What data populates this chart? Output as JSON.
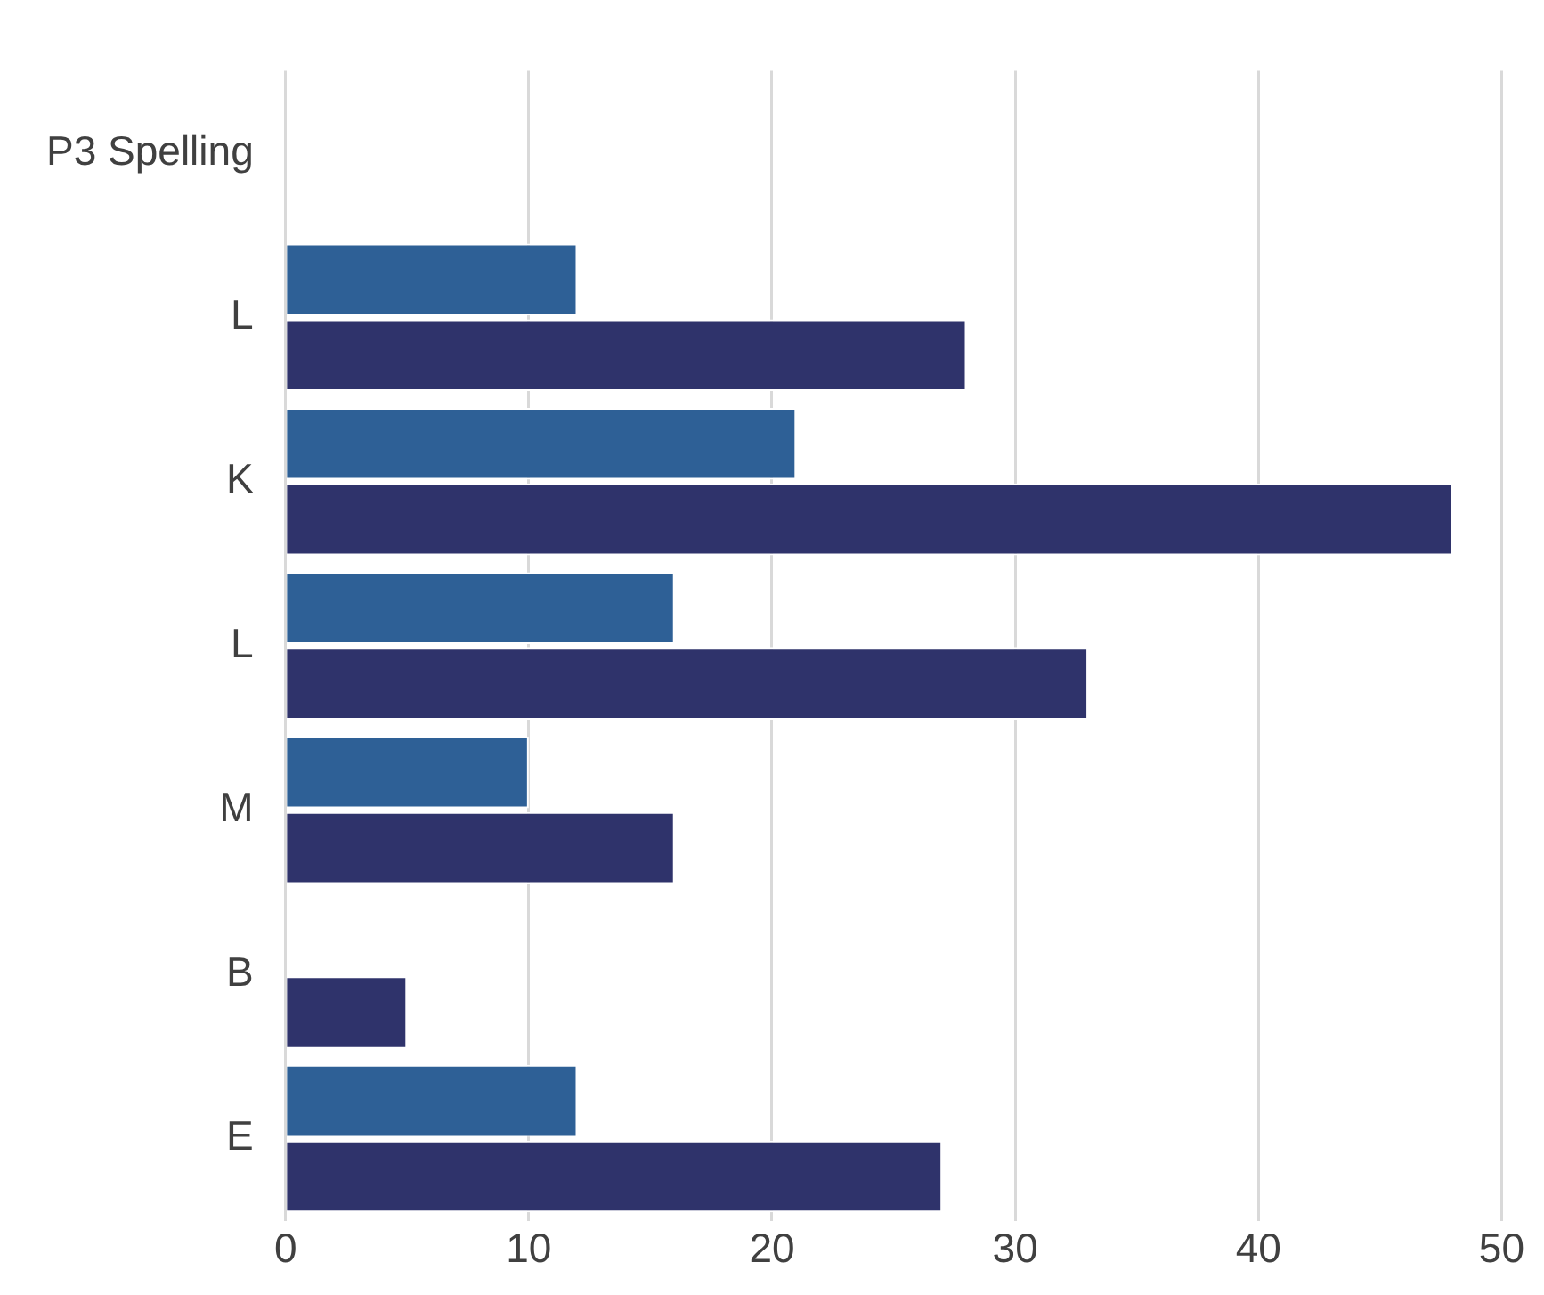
{
  "chart_data": {
    "type": "bar",
    "orientation": "horizontal",
    "categories": [
      "P3 Spelling",
      "L",
      "K",
      "L",
      "M",
      "B",
      "E"
    ],
    "series": [
      {
        "color": "#2e6096",
        "values": [
          null,
          12,
          21,
          16,
          10,
          null,
          12
        ]
      },
      {
        "color": "#2f336b",
        "values": [
          null,
          28,
          48,
          33,
          16,
          5,
          27
        ]
      }
    ],
    "xlim": [
      0,
      50
    ],
    "xticks": [
      0,
      10,
      20,
      30,
      40,
      50
    ],
    "grid": "x",
    "legend": false
  }
}
